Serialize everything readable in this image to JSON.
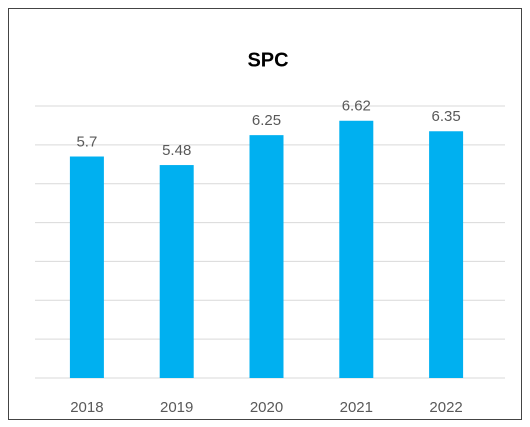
{
  "chart_data": {
    "type": "bar",
    "title": "SPC",
    "categories": [
      "2018",
      "2019",
      "2020",
      "2021",
      "2022"
    ],
    "values": [
      5.7,
      5.48,
      6.25,
      6.62,
      6.35
    ],
    "color": "#00b0f0",
    "ylim": [
      0,
      7
    ],
    "yticks": [
      0,
      1,
      2,
      3,
      4,
      5,
      6,
      7
    ],
    "grid": true,
    "data_labels": true
  }
}
